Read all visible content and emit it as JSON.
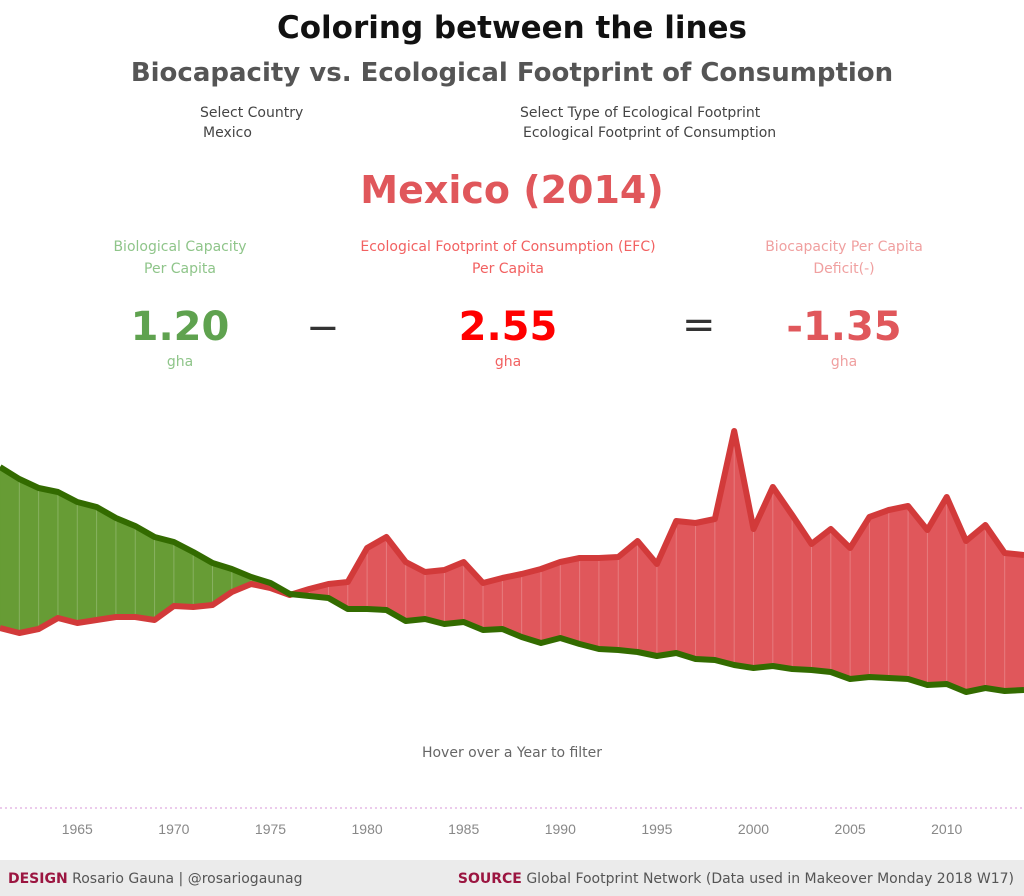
{
  "header": {
    "title": "Coloring between the lines",
    "subtitle": "Biocapacity vs. Ecological Footprint of Consumption"
  },
  "filters": {
    "country": {
      "label": "Select Country",
      "value": "Mexico"
    },
    "footprint_type": {
      "label": "Select Type of Ecological Footprint",
      "value": "Ecological Footprint of Consumption"
    }
  },
  "country_heading": "Mexico (2014)",
  "kpis": {
    "biocapacity": {
      "label1": "Biological Capacity",
      "label2": "Per Capita",
      "value": "1.20",
      "unit": "gha",
      "color": "#5fa24f"
    },
    "minus": "−",
    "efc": {
      "label1": "Ecological Footprint of Consumption (EFC)",
      "label2": "Per Capita",
      "value": "2.55",
      "unit": "gha",
      "color": "#ff0000"
    },
    "equals": "=",
    "deficit": {
      "label1": "Biocapacity Per Capita",
      "label2": "Deficit(-)",
      "value": "-1.35",
      "unit": "gha",
      "color": "#e0575b"
    }
  },
  "hint": "Hover over a Year to filter",
  "footer": {
    "design_label": "DESIGN",
    "design_text": "Rosario Gauna | @rosariogaunag",
    "source_label": "SOURCE",
    "source_text": "Global Footprint Network  (Data used in Makeover Monday 2018  W17)"
  },
  "chart_data": {
    "type": "area",
    "x": [
      1961,
      1962,
      1963,
      1964,
      1965,
      1966,
      1967,
      1968,
      1969,
      1970,
      1971,
      1972,
      1973,
      1974,
      1975,
      1976,
      1977,
      1978,
      1979,
      1980,
      1981,
      1982,
      1983,
      1984,
      1985,
      1986,
      1987,
      1988,
      1989,
      1990,
      1991,
      1992,
      1993,
      1994,
      1995,
      1996,
      1997,
      1998,
      1999,
      2000,
      2001,
      2002,
      2003,
      2004,
      2005,
      2006,
      2007,
      2008,
      2009,
      2010,
      2011,
      2012,
      2013,
      2014
    ],
    "xticks": [
      1965,
      1970,
      1975,
      1980,
      1985,
      1990,
      1995,
      2000,
      2005,
      2010
    ],
    "xlim": [
      1961,
      2014
    ],
    "ylim": [
      0,
      4.1
    ],
    "unit": "gha",
    "series": [
      {
        "key": "biocapacity",
        "color": "#336b00",
        "fill_surplus": "#679c35",
        "values": [
          3.43,
          3.31,
          3.22,
          3.18,
          3.08,
          3.03,
          2.92,
          2.84,
          2.73,
          2.68,
          2.58,
          2.47,
          2.41,
          2.33,
          2.27,
          2.16,
          2.14,
          2.12,
          2.01,
          2.01,
          2.0,
          1.89,
          1.91,
          1.86,
          1.88,
          1.8,
          1.81,
          1.73,
          1.67,
          1.72,
          1.66,
          1.61,
          1.6,
          1.58,
          1.54,
          1.57,
          1.51,
          1.5,
          1.45,
          1.42,
          1.44,
          1.41,
          1.4,
          1.38,
          1.31,
          1.33,
          1.32,
          1.31,
          1.25,
          1.26,
          1.18,
          1.22,
          1.19,
          1.2
        ]
      },
      {
        "key": "efc",
        "color": "#d23a3a",
        "fill_deficit": "#e0575b",
        "values": [
          1.82,
          1.77,
          1.81,
          1.92,
          1.87,
          1.9,
          1.93,
          1.93,
          1.9,
          2.04,
          2.03,
          2.05,
          2.18,
          2.26,
          2.22,
          2.15,
          2.21,
          2.26,
          2.28,
          2.62,
          2.73,
          2.48,
          2.38,
          2.4,
          2.48,
          2.27,
          2.32,
          2.36,
          2.41,
          2.48,
          2.52,
          2.52,
          2.53,
          2.69,
          2.46,
          2.89,
          2.87,
          2.91,
          3.79,
          2.81,
          3.23,
          2.95,
          2.66,
          2.81,
          2.62,
          2.93,
          3.0,
          3.04,
          2.8,
          3.13,
          2.69,
          2.85,
          2.57,
          2.55
        ]
      }
    ]
  }
}
